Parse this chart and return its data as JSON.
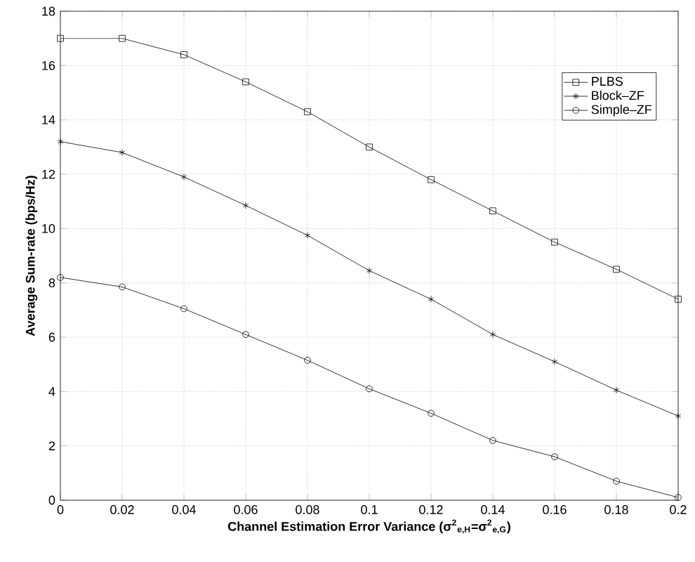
{
  "chart_data": {
    "type": "line",
    "xlabel": "Channel Estimation Error Variance (σ$^{2}$$_{e,H}$=σ$^{2}$$_{e,G}$)",
    "ylabel": "Average Sum-rate (bps/Hz)",
    "x": [
      0,
      0.02,
      0.04,
      0.06,
      0.08,
      0.1,
      0.12,
      0.14,
      0.16,
      0.18,
      0.2
    ],
    "series": [
      {
        "name": "PLBS",
        "color": "#000000",
        "marker": "square",
        "values": [
          17,
          17,
          16.4,
          15.4,
          14.3,
          13.0,
          11.8,
          10.65,
          9.5,
          8.5,
          7.4
        ]
      },
      {
        "name": "Block–ZF",
        "color": "#000000",
        "marker": "cross",
        "values": [
          13.2,
          12.8,
          11.9,
          10.85,
          9.75,
          8.45,
          7.4,
          6.1,
          5.1,
          4.05,
          3.1
        ]
      },
      {
        "name": "Simple–ZF",
        "color": "#000000",
        "marker": "circle",
        "values": [
          8.2,
          7.85,
          7.05,
          6.1,
          5.15,
          4.1,
          3.2,
          2.2,
          1.6,
          0.7,
          0.1
        ]
      }
    ],
    "xlim": [
      0,
      0.2
    ],
    "ylim": [
      0,
      18
    ],
    "xticks": [
      0,
      0.02,
      0.04,
      0.06,
      0.08,
      0.1,
      0.12,
      0.14,
      0.16,
      0.18,
      0.2
    ],
    "yticks": [
      0,
      2,
      4,
      6,
      8,
      10,
      12,
      14,
      16,
      18
    ],
    "grid": true,
    "legend": "top right",
    "line_style": "solid"
  }
}
